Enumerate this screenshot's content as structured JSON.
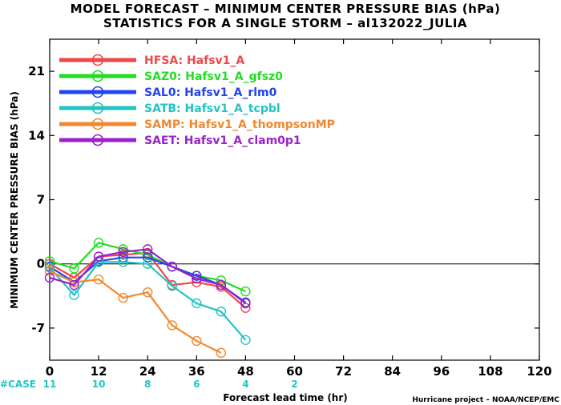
{
  "title": "MODEL FORECAST – MINIMUM CENTER PRESSURE BIAS (hPa)",
  "subtitle": "STATISTICS FOR A SINGLE STORM – al132022_JULIA",
  "credit": "Hurricane project – NOAA/NCEP/EMC",
  "case_label": "#CASE",
  "case_color": "#22c4c4",
  "chart_data": {
    "type": "line",
    "title": "MODEL FORECAST – MINIMUM CENTER PRESSURE BIAS (hPa)",
    "subtitle": "STATISTICS FOR A SINGLE STORM – al132022_JULIA",
    "xlabel": "Forecast lead time (hr)",
    "ylabel": "MINIMUM CENTER PRESSURE BIAS (hPa)",
    "xlim": [
      0,
      120
    ],
    "ylim": [
      -10.5,
      24.5
    ],
    "xticks": [
      0,
      12,
      24,
      36,
      48,
      60,
      72,
      84,
      96,
      108,
      120
    ],
    "yticks": [
      -7,
      0,
      7,
      14,
      21
    ],
    "grid": false,
    "zero_line": true,
    "legend_placement": "top-left",
    "cases": [
      {
        "x": 0,
        "n": "11"
      },
      {
        "x": 12,
        "n": "10"
      },
      {
        "x": 24,
        "n": "8"
      },
      {
        "x": 36,
        "n": "6"
      },
      {
        "x": 48,
        "n": "4"
      },
      {
        "x": 60,
        "n": "2"
      }
    ],
    "x": [
      0,
      6,
      12,
      18,
      24,
      30,
      36,
      42,
      48
    ],
    "series": [
      {
        "name": "HFSA:",
        "model": "Hafsv1_A",
        "color": "#f04848",
        "values": [
          0.0,
          -1.5,
          0.8,
          1.0,
          1.2,
          -2.3,
          -2.0,
          -2.5,
          -4.8
        ]
      },
      {
        "name": "SAZ0:",
        "model": "Hafsv1_A_gfsz0",
        "color": "#22dd22",
        "values": [
          0.3,
          -0.5,
          2.3,
          1.6,
          1.0,
          -0.3,
          -1.3,
          -1.8,
          -3.0
        ]
      },
      {
        "name": "SAL0:",
        "model": "Hafsv1_A_rlm0",
        "color": "#2244ee",
        "values": [
          -0.3,
          -2.0,
          0.3,
          0.7,
          0.7,
          -0.3,
          -1.3,
          -2.3,
          -4.2
        ]
      },
      {
        "name": "SATB:",
        "model": "Hafsv1_A_tcpbl",
        "color": "#22c4c4",
        "values": [
          -0.4,
          -3.4,
          0.2,
          0.2,
          0.0,
          -2.4,
          -4.3,
          -5.2,
          -8.3
        ]
      },
      {
        "name": "SAMP:",
        "model": "Hafsv1_A_thompsonMP",
        "color": "#f08830",
        "values": [
          -0.8,
          -2.0,
          -1.7,
          -3.7,
          -3.1,
          -6.7,
          -8.4,
          -9.7,
          null
        ]
      },
      {
        "name": "SAET:",
        "model": "Hafsv1_A_clam0p1",
        "color": "#9922cc",
        "values": [
          -1.5,
          -2.3,
          0.8,
          1.3,
          1.6,
          -0.3,
          -1.6,
          -2.3,
          -4.3
        ]
      }
    ]
  }
}
